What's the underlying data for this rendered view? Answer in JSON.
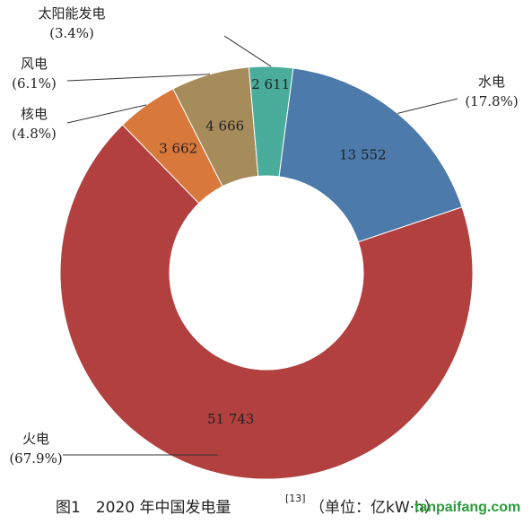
{
  "chart_data": {
    "type": "donut",
    "categories": [
      "水电",
      "火电",
      "核电",
      "风电",
      "太阳能发电"
    ],
    "values": [
      13552,
      51743,
      3662,
      4666,
      2611
    ],
    "value_labels": [
      "13 552",
      "51 743",
      "3 662",
      "4 666",
      "2 611"
    ],
    "percent_labels": [
      "(17.8%)",
      "(67.9%)",
      "(4.8%)",
      "(6.1%)",
      "(3.4%)"
    ],
    "colors": [
      "#4b7aab",
      "#b1403f",
      "#d9783b",
      "#a68b5b",
      "#4aac9a"
    ],
    "caption": "图1　2020 年中国发电量",
    "caption_ref": "[13]",
    "caption_unit": "（单位：亿kW·h）",
    "watermark": "tanpaifang.com"
  }
}
